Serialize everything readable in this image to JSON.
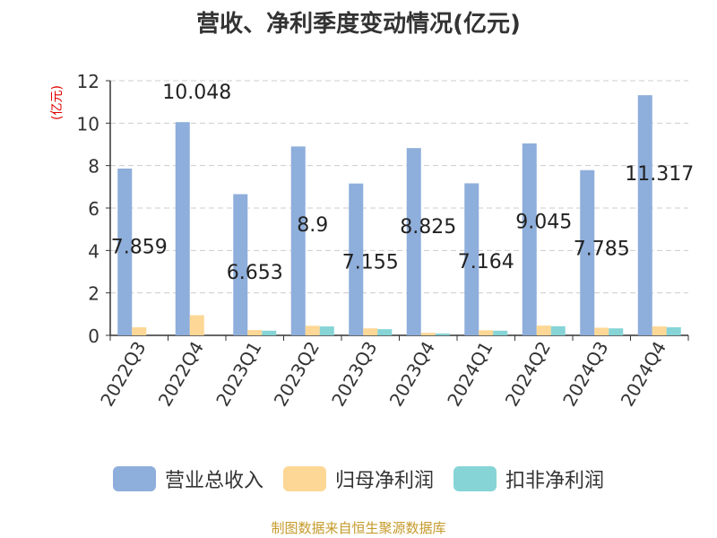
{
  "chart_data": {
    "type": "bar",
    "title": "营收、净利季度变动情况(亿元)",
    "ylabel": "(亿元)",
    "categories": [
      "2022Q3",
      "2022Q4",
      "2023Q1",
      "2023Q2",
      "2023Q3",
      "2023Q4",
      "2024Q1",
      "2024Q2",
      "2024Q3",
      "2024Q4"
    ],
    "ylim": [
      0,
      12
    ],
    "yticks": [
      0,
      2,
      4,
      6,
      8,
      10,
      12
    ],
    "grid": true,
    "legend_position": "bottom",
    "series": [
      {
        "name": "营业总收入",
        "color": "#8eaedb",
        "values": [
          7.859,
          10.048,
          6.653,
          8.9,
          7.155,
          8.825,
          7.164,
          9.045,
          7.785,
          11.317
        ],
        "labels": [
          "7.859",
          "10.048",
          "6.653",
          "8.9",
          "7.155",
          "8.825",
          "7.164",
          "9.045",
          "7.785",
          "11.317"
        ]
      },
      {
        "name": "归母净利润",
        "color": "#fdd795",
        "values": [
          0.38,
          0.95,
          0.25,
          0.45,
          0.33,
          0.12,
          0.24,
          0.46,
          0.36,
          0.42
        ]
      },
      {
        "name": "扣非净利润",
        "color": "#86d4d6",
        "values": [
          0.0,
          0.0,
          0.22,
          0.42,
          0.29,
          0.09,
          0.22,
          0.43,
          0.33,
          0.38
        ]
      }
    ],
    "label_offsets": [
      -4.0,
      1.1,
      -4.0,
      -4.0,
      -4.0,
      -4.0,
      -4.0,
      -4.0,
      -4.0,
      -4.0
    ]
  },
  "source_note": "制图数据来自恒生聚源数据库"
}
